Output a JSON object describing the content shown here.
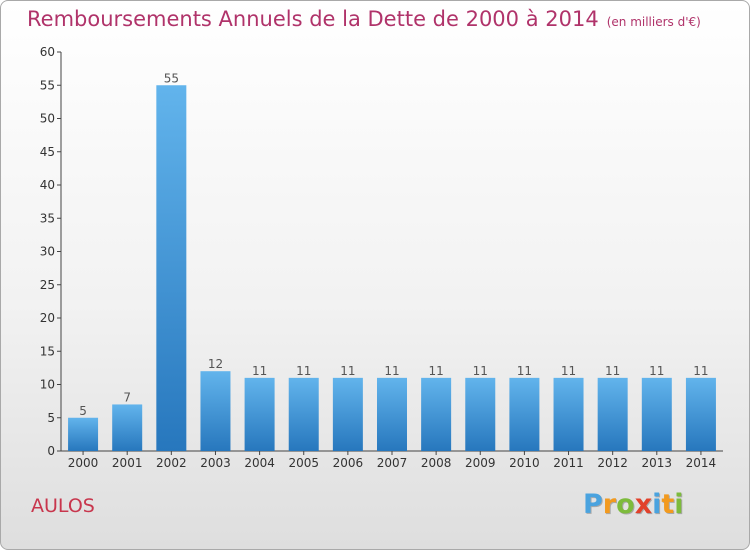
{
  "title": "Remboursements Annuels de la Dette de 2000 à 2014",
  "unit": "(en milliers d'€)",
  "commune": "AULOS",
  "logo": {
    "letters": [
      "P",
      "r",
      "o",
      "x",
      "i",
      "t",
      "i"
    ],
    "colors": [
      "#4aa3df",
      "#f29a1f",
      "#7dbb3c",
      "#e2412b",
      "#4aa3df",
      "#f29a1f",
      "#7dbb3c"
    ]
  },
  "colors": {
    "bar": "#3d98de",
    "bar_light": "#62b4ec",
    "bar_dark": "#2777bd",
    "title": "#b0336a",
    "commune": "#c8364d"
  },
  "chart_data": {
    "type": "bar",
    "categories": [
      "2000",
      "2001",
      "2002",
      "2003",
      "2004",
      "2005",
      "2006",
      "2007",
      "2008",
      "2009",
      "2010",
      "2011",
      "2012",
      "2013",
      "2014"
    ],
    "values": [
      5,
      7,
      55,
      12,
      11,
      11,
      11,
      11,
      11,
      11,
      11,
      11,
      11,
      11,
      11
    ],
    "data_labels": [
      "5",
      "7",
      "55",
      "12",
      "11",
      "11",
      "11",
      "11",
      "11",
      "11",
      "11",
      "11",
      "11",
      "11",
      "11"
    ],
    "ylim": [
      0,
      60
    ],
    "yticks": [
      "0",
      "5",
      "10",
      "15",
      "20",
      "25",
      "30",
      "35",
      "40",
      "45",
      "50",
      "55",
      "60"
    ],
    "grid": false,
    "legend": "none"
  }
}
